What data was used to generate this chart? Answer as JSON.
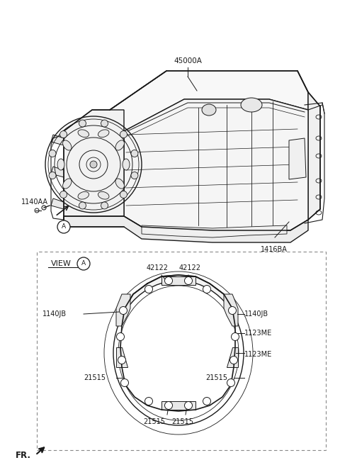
{
  "bg_color": "#ffffff",
  "line_color": "#1a1a1a",
  "font_size_label": 7.0,
  "font_size_view": 8.0,
  "title_label": "45000A",
  "label_1140AA": "1140AA",
  "label_1416BA": "1416BA",
  "label_view_a": "VIEW",
  "label_42122_left": "42122",
  "label_42122_right": "42122",
  "label_1140JB_left": "1140JB",
  "label_1140JB_right": "1140JB",
  "label_1123ME_top": "1123ME",
  "label_1123ME_bot": "1123ME",
  "label_21515_bl": "21515",
  "label_21515_br": "21515",
  "label_21515_bml": "21515",
  "label_21515_bmr": "21515",
  "fr_label": "FR."
}
